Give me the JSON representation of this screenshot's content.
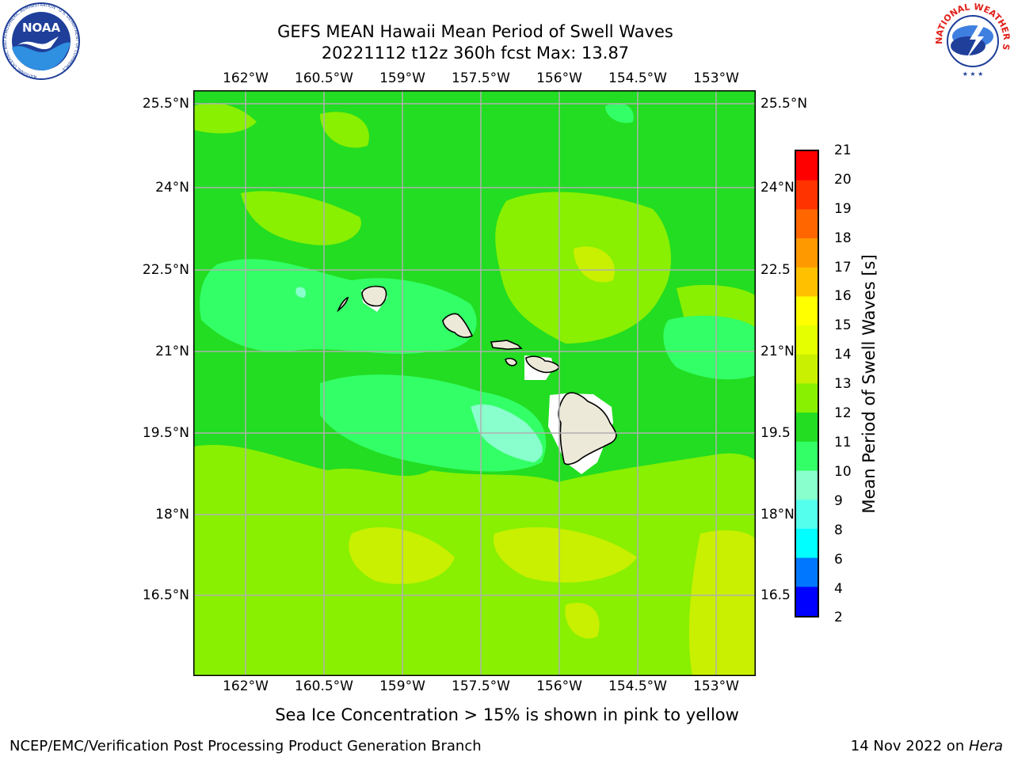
{
  "title": {
    "line1": "GEFS MEAN Hawaii Mean Period of Swell Waves",
    "line2": "20221112 t12z 360h fcst   Max: 13.87"
  },
  "logos": {
    "noaa_text": "NOAA",
    "noaa_ring_text": "NATIONAL OCEANIC AND ATMOSPHERIC ADMINISTRATION · U.S. DEPARTMENT OF COMMERCE",
    "nws_ring_text": "NATIONAL WEATHER SERVICE"
  },
  "map": {
    "lon_ticks": [
      "162°W",
      "160.5°W",
      "159°W",
      "157.5°W",
      "156°W",
      "154.5°W",
      "153°W"
    ],
    "lat_ticks": [
      "25.5°N",
      "24°N",
      "22.5°N",
      "21°N",
      "19.5°N",
      "18°N",
      "16.5°N"
    ],
    "lat_ticks_right": [
      "25.5°N",
      "24°N",
      "22.5",
      "21°N",
      "19.5",
      "18°N",
      "16.5"
    ],
    "field_colors": {
      "ocean_11_12": "#22dd22",
      "ocean_12_13": "#88f000",
      "ocean_13_14": "#c8f000",
      "ocean_10_11": "#33ff66",
      "ocean_9_10": "#88ffcc",
      "land": "#ede9d8",
      "gridline": "#b0b0b0"
    }
  },
  "colorbar": {
    "label": "Mean Period of Swell Waves [s]",
    "ticks": [
      "21",
      "20",
      "19",
      "18",
      "17",
      "16",
      "15",
      "14",
      "13",
      "12",
      "11",
      "10",
      "9",
      "8",
      "6",
      "4",
      "2"
    ],
    "colors": [
      "#ff0000",
      "#ff3300",
      "#ff6600",
      "#ff9900",
      "#ffc000",
      "#ffff00",
      "#e6ff00",
      "#c8f000",
      "#88f000",
      "#22dd22",
      "#33ff66",
      "#88ffcc",
      "#55ffee",
      "#00ffff",
      "#0077ff",
      "#0000ff"
    ]
  },
  "notes": {
    "sea_ice": "Sea Ice Concentration > 15% is shown in pink to yellow",
    "branch": "NCEP/EMC/Verification Post Processing Product Generation Branch",
    "date": "14 Nov 2022 on ",
    "host": "Hera"
  }
}
